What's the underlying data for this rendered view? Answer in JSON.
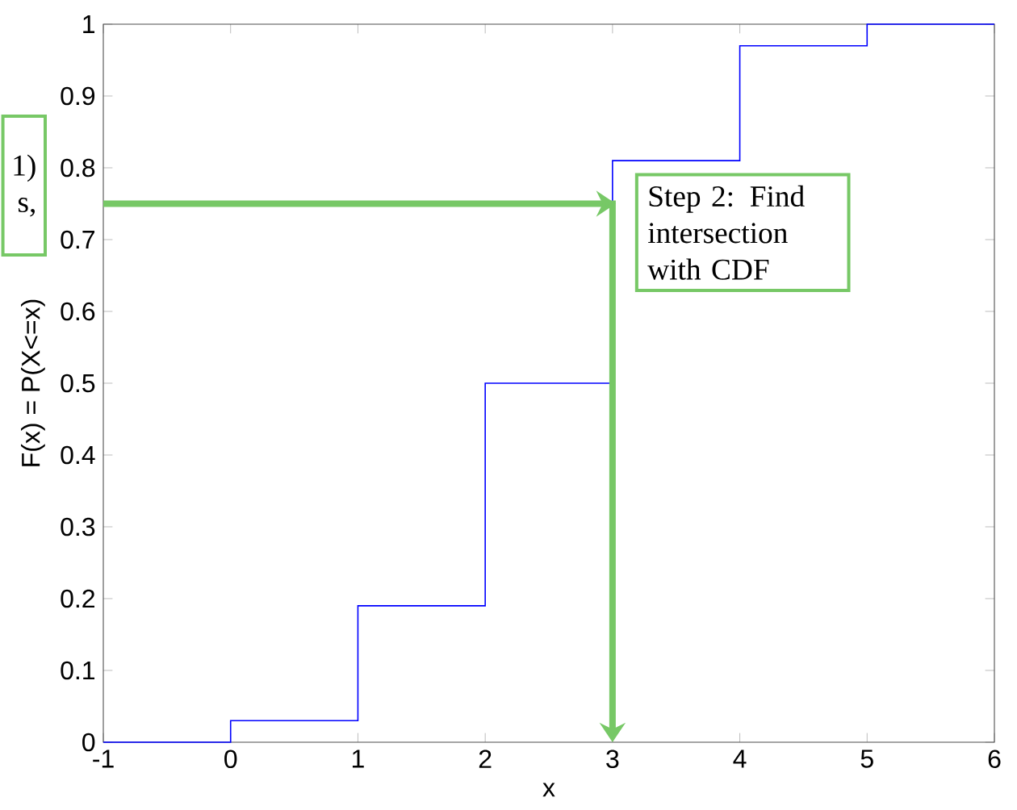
{
  "chart_data": {
    "type": "step",
    "xlabel": "x",
    "ylabel": "F(x) = P(X<=x)",
    "x": [
      -1,
      0,
      1,
      2,
      3,
      4,
      5,
      6
    ],
    "series": [
      {
        "color": "#0000ff",
        "values": [
          0,
          0.03,
          0.19,
          0.5,
          0.81,
          0.97,
          1,
          1
        ]
      }
    ],
    "xlim": [
      -1,
      6
    ],
    "ylim": [
      0,
      1
    ],
    "xticks": [
      -1,
      0,
      1,
      2,
      3,
      4,
      5,
      6
    ],
    "yticks": [
      0,
      0.1,
      0.2,
      0.3,
      0.4,
      0.5,
      0.6,
      0.7,
      0.8,
      0.9,
      1
    ],
    "annotations": [
      {
        "text": "Step 2: Find intersection with CDF",
        "x": 3,
        "y": 0.75
      },
      "1)",
      "s,"
    ]
  }
}
